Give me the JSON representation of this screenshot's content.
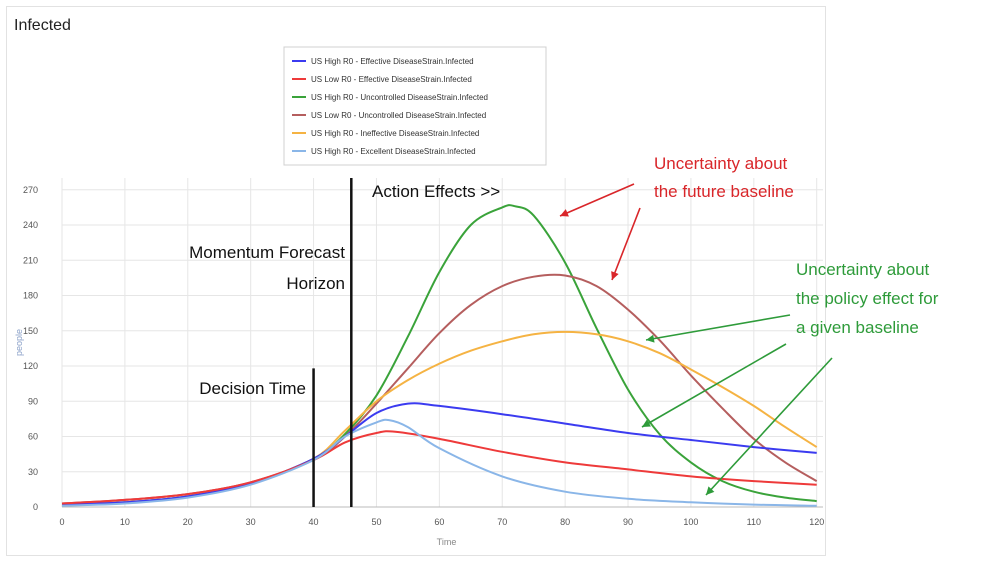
{
  "panel_title": "Infected",
  "chart_data": {
    "type": "line",
    "title": "Infected",
    "xlabel": "Time",
    "ylabel": "people",
    "xlim": [
      0,
      121
    ],
    "ylim": [
      0,
      280
    ],
    "x_ticks": [
      0,
      10,
      20,
      30,
      40,
      50,
      60,
      70,
      80,
      90,
      100,
      110,
      120
    ],
    "y_ticks": [
      0,
      30,
      60,
      90,
      120,
      150,
      180,
      210,
      240,
      270
    ],
    "grid": true,
    "legend_position": "top-center",
    "series": [
      {
        "name": "US High R0 - Effective DiseaseStrain.Infected",
        "color": "#3b3bf0",
        "x": [
          0,
          10,
          20,
          30,
          40,
          45,
          50,
          55,
          60,
          70,
          80,
          90,
          100,
          110,
          120
        ],
        "y": [
          2,
          4,
          9,
          20,
          41,
          60,
          80,
          88,
          86,
          79,
          71,
          63,
          57,
          51,
          46
        ]
      },
      {
        "name": "US Low R0 - Effective DiseaseStrain.Infected",
        "color": "#ee3a3a",
        "x": [
          0,
          10,
          20,
          30,
          40,
          45,
          50,
          53,
          60,
          70,
          80,
          90,
          100,
          110,
          120
        ],
        "y": [
          3,
          6,
          11,
          21,
          40,
          55,
          63,
          64,
          58,
          47,
          38,
          32,
          26,
          22,
          19
        ]
      },
      {
        "name": "US High R0 - Uncontrolled DiseaseStrain.Infected",
        "color": "#3aa33a",
        "x": [
          0,
          10,
          20,
          30,
          40,
          45,
          50,
          55,
          60,
          65,
          70,
          72,
          75,
          80,
          85,
          90,
          95,
          100,
          105,
          110,
          115,
          120
        ],
        "y": [
          2,
          4,
          9,
          20,
          41,
          62,
          95,
          145,
          200,
          240,
          255,
          256,
          248,
          208,
          152,
          100,
          62,
          38,
          22,
          13,
          8,
          5
        ]
      },
      {
        "name": "US Low R0 - Uncontrolled DiseaseStrain.Infected",
        "color": "#b55e5e",
        "x": [
          0,
          10,
          20,
          30,
          40,
          45,
          50,
          55,
          60,
          65,
          70,
          75,
          80,
          85,
          90,
          95,
          100,
          105,
          110,
          115,
          120
        ],
        "y": [
          3,
          6,
          11,
          21,
          40,
          60,
          88,
          118,
          148,
          172,
          188,
          196,
          197,
          188,
          168,
          142,
          112,
          84,
          58,
          38,
          22
        ]
      },
      {
        "name": "US High R0 - Ineffective DiseaseStrain.Infected",
        "color": "#f5b343",
        "x": [
          0,
          10,
          20,
          30,
          40,
          45,
          50,
          55,
          60,
          65,
          70,
          75,
          80,
          85,
          90,
          95,
          100,
          105,
          110,
          115,
          120
        ],
        "y": [
          2,
          4,
          9,
          20,
          41,
          65,
          90,
          108,
          122,
          133,
          141,
          147,
          149,
          147,
          141,
          131,
          117,
          102,
          86,
          68,
          51
        ]
      },
      {
        "name": "US High R0 - Excellent DiseaseStrain.Infected",
        "color": "#8ab6e8",
        "x": [
          0,
          10,
          20,
          30,
          40,
          45,
          50,
          52,
          55,
          60,
          70,
          80,
          90,
          100,
          110,
          120
        ],
        "y": [
          1,
          3,
          8,
          19,
          40,
          60,
          72,
          74,
          68,
          50,
          26,
          13,
          7,
          4,
          2,
          1
        ]
      }
    ],
    "vertical_markers": [
      {
        "x": 40,
        "ymax": 118
      },
      {
        "x": 46,
        "ymax": 280
      }
    ],
    "annotations": {
      "action_effects": "Action Effects >>",
      "momentum_line1": "Momentum Forecast",
      "momentum_line2": "Horizon",
      "decision_time": "Decision Time",
      "uncertainty_baseline_line1": "Uncertainty about",
      "uncertainty_baseline_line2": "the future baseline",
      "uncertainty_policy_line1": "Uncertainty about",
      "uncertainty_policy_line2": "the policy effect for",
      "uncertainty_policy_line3": "a given baseline",
      "red_color": "#d9262a",
      "green_color": "#2e9b3a"
    }
  }
}
